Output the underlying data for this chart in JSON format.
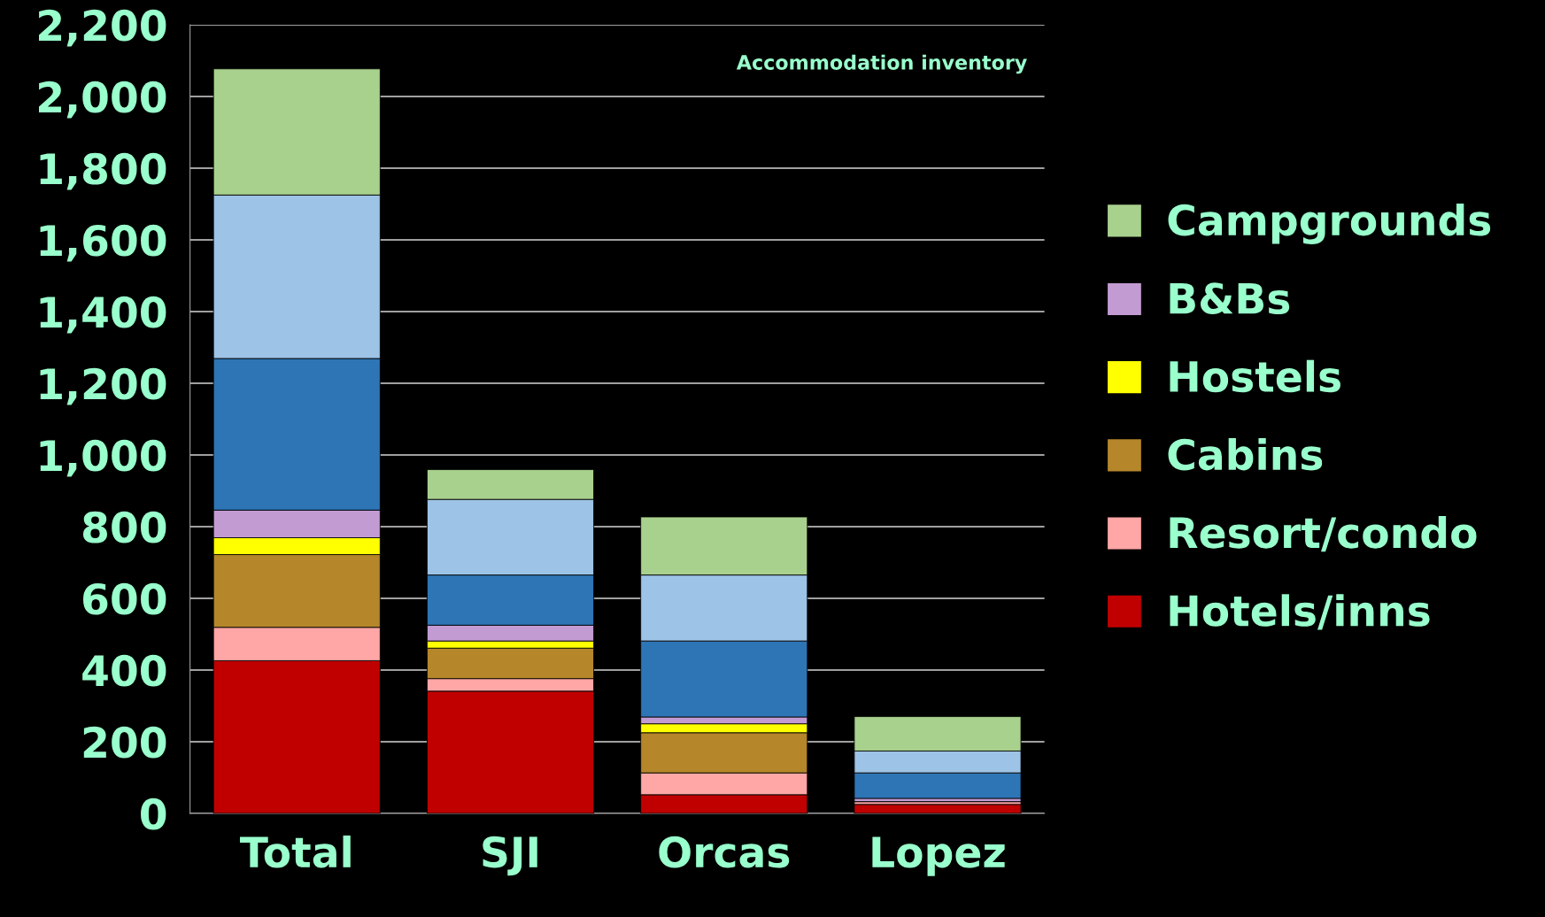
{
  "chart_data": {
    "type": "bar",
    "stacked": true,
    "categories": [
      "Total",
      "SJI",
      "Orcas",
      "Lopez"
    ],
    "series": [
      {
        "name": "Hotels/inns",
        "color": "#c00000",
        "values": [
          426,
          341,
          52,
          25
        ]
      },
      {
        "name": "Resort/condo",
        "color": "#ffa6a6",
        "values": [
          93,
          35,
          61,
          8
        ]
      },
      {
        "name": "Cabins",
        "color": "#b5862a",
        "values": [
          203,
          85,
          112,
          0
        ]
      },
      {
        "name": "Hostels",
        "color": "#ffff00",
        "values": [
          47,
          20,
          25,
          0
        ]
      },
      {
        "name": "B&Bs",
        "color": "#c39bd3",
        "values": [
          77,
          44,
          19,
          9
        ]
      },
      {
        "color": "#2e75b6",
        "values": [
          423,
          140,
          212,
          71
        ]
      },
      {
        "color": "#9dc3e6",
        "values": [
          456,
          211,
          184,
          61
        ]
      },
      {
        "name": "Campgrounds",
        "color": "#a9d18e",
        "values": [
          352,
          83,
          162,
          96
        ]
      }
    ],
    "ylim": [
      0,
      2200
    ],
    "yticks": [
      {
        "value": 0,
        "label": "0"
      },
      {
        "value": 200,
        "label": "200"
      },
      {
        "value": 400,
        "label": "400"
      },
      {
        "value": 600,
        "label": "600"
      },
      {
        "value": 800,
        "label": "800"
      },
      {
        "value": 1000,
        "label": "1,000"
      },
      {
        "value": 1200,
        "label": "1,200"
      },
      {
        "value": 1400,
        "label": "1,400"
      },
      {
        "value": 1600,
        "label": "1,600"
      },
      {
        "value": 1800,
        "label": "1,800"
      },
      {
        "value": 2000,
        "label": "2,000"
      },
      {
        "value": 2200,
        "label": "2,200"
      }
    ],
    "grid": "y",
    "legend": "right",
    "annotations": [
      "Accommodation inventory"
    ]
  }
}
